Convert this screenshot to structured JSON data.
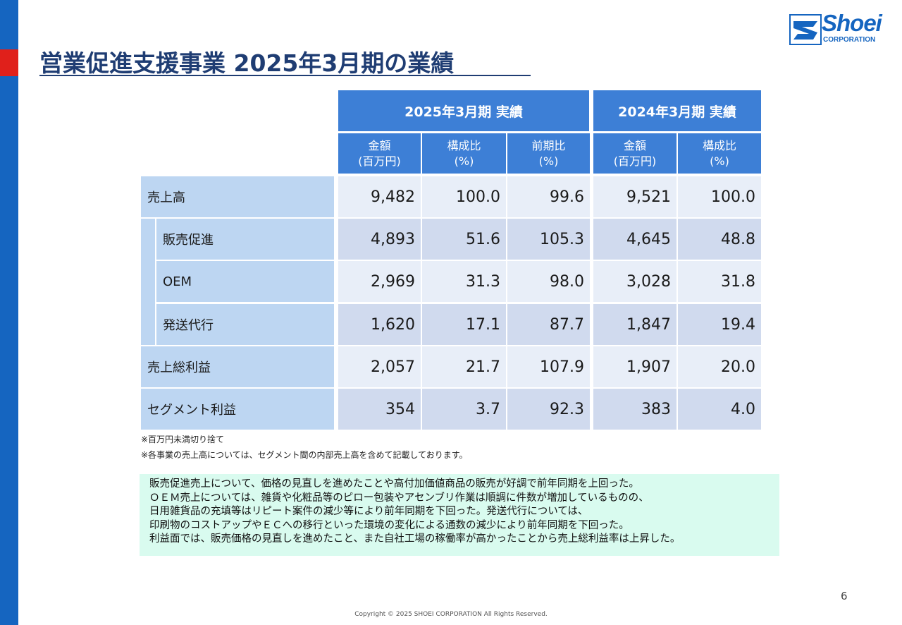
{
  "title": "営業促進支援事業 2025年3月期の業績",
  "logo": {
    "name": "Shoei",
    "sub": "CORPORATION"
  },
  "table": {
    "group_headers": [
      "2025年3月期 実績",
      "2024年3月期 実績"
    ],
    "sub_headers": [
      {
        "line1": "金額",
        "line2": "(百万円)"
      },
      {
        "line1": "構成比",
        "line2": "(%)"
      },
      {
        "line1": "前期比",
        "line2": "(%)"
      },
      {
        "line1": "金額",
        "line2": "(百万円)"
      },
      {
        "line1": "構成比",
        "line2": "(%)"
      }
    ],
    "rows": [
      {
        "label": "売上高",
        "values": [
          "9,482",
          "100.0",
          "99.6",
          "9,521",
          "100.0"
        ]
      },
      {
        "label": "販売促進",
        "values": [
          "4,893",
          "51.6",
          "105.3",
          "4,645",
          "48.8"
        ]
      },
      {
        "label": "OEM",
        "values": [
          "2,969",
          "31.3",
          "98.0",
          "3,028",
          "31.8"
        ]
      },
      {
        "label": "発送代行",
        "values": [
          "1,620",
          "17.1",
          "87.7",
          "1,847",
          "19.4"
        ]
      },
      {
        "label": "売上総利益",
        "values": [
          "2,057",
          "21.7",
          "107.9",
          "1,907",
          "20.0"
        ]
      },
      {
        "label": "セグメント利益",
        "values": [
          "354",
          "3.7",
          "92.3",
          "383",
          "4.0"
        ]
      }
    ]
  },
  "notes": [
    "※百万円未満切り捨て",
    "※各事業の売上高については、セグメント間の内部売上高を含めて記載しております。"
  ],
  "comment_lines": [
    "販売促進売上について、価格の見直しを進めたことや高付加価値商品の販売が好調で前年同期を上回った。",
    "ＯＥＭ売上については、雑貨や化粧品等のピロー包装やアセンブリ作業は順調に件数が増加しているものの、",
    "日用雑貨品の充填等はリピート案件の減少等により前年同期を下回った。発送代行については、",
    "印刷物のコストアップやＥＣへの移行といった環境の変化による通数の減少により前年同期を下回った。",
    "利益面では、販売価格の見直しを進めたこと、また自社工場の稼働率が高かったことから売上総利益率は上昇した。"
  ],
  "page_number": "6",
  "footer": "Copyright © 2025 SHOEI CORPORATION All Rights Reserved.",
  "colors": {
    "header_blue": "#3d7fd6",
    "label_blue": "#bdd6f2",
    "cell_light": "#e8eef8",
    "cell_dark": "#d0daee",
    "comment_bg": "#d9fbef",
    "title": "#1f3d73",
    "accent_red": "#e0201b"
  }
}
